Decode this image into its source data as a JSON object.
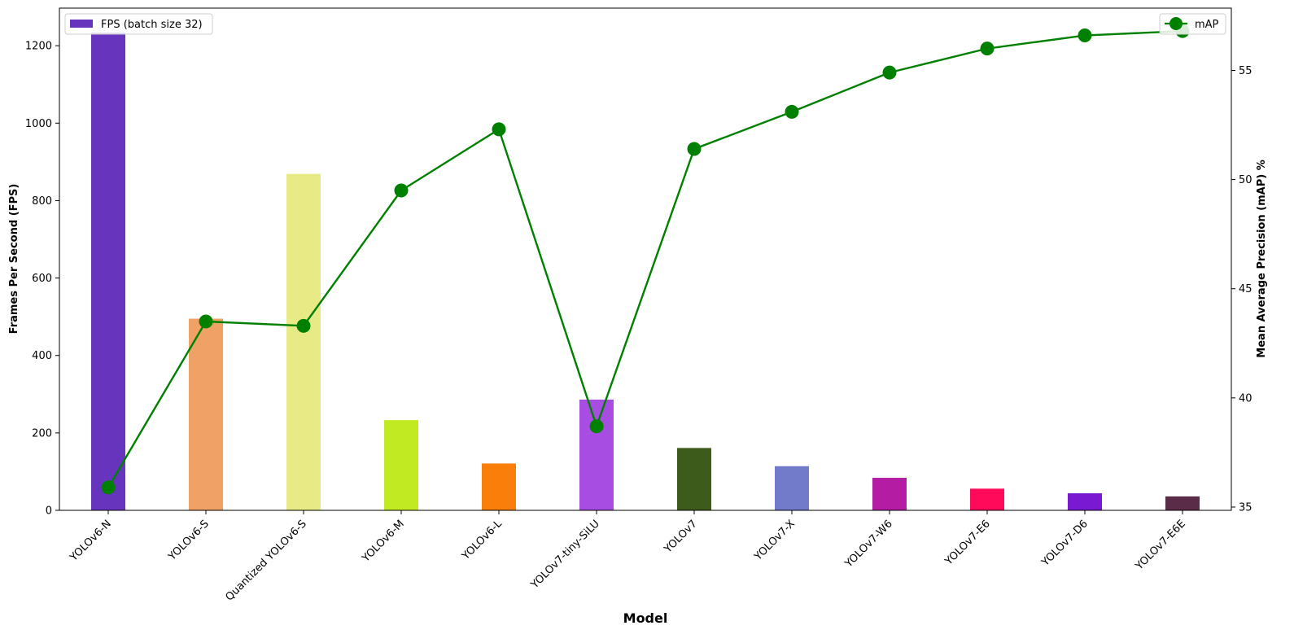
{
  "chart_data": {
    "type": "bar",
    "xlabel": "Model",
    "categories": [
      "YOLOv6-N",
      "YOLOv6-S",
      "Quantized YOLOv6-S",
      "YOLOv6-M",
      "YOLOv6-L",
      "YOLOv7-tiny-SiLU",
      "YOLOv7",
      "YOLOv7-X",
      "YOLOv7-W6",
      "YOLOv7-E6",
      "YOLOv7-D6",
      "YOLOv7-E6E"
    ],
    "series": [
      {
        "name": "FPS (batch size 32)",
        "type": "bar",
        "axis": "left",
        "values": [
          1234,
          495,
          869,
          233,
          121,
          286,
          161,
          114,
          84,
          56,
          44,
          36
        ],
        "colors": [
          "#6735bd",
          "#f0a166",
          "#e8ea86",
          "#c2ea22",
          "#f97f0a",
          "#a84de2",
          "#3d5b1b",
          "#717bca",
          "#b31ca3",
          "#ff0a5b",
          "#7a19d2",
          "#5a2c48"
        ]
      },
      {
        "name": "mAP",
        "type": "line",
        "axis": "right",
        "color": "#008000",
        "values": [
          35.9,
          43.5,
          43.3,
          49.5,
          52.3,
          38.7,
          51.4,
          53.1,
          54.9,
          56.0,
          56.6,
          56.8
        ]
      }
    ],
    "y_left": {
      "label": "Frames Per Second (FPS)",
      "ylim": [
        0,
        1297
      ],
      "ticks": [
        0,
        200,
        400,
        600,
        800,
        1000,
        1200
      ]
    },
    "y_right": {
      "label": "Mean Average Precision (mAP) %",
      "ylim": [
        34.85,
        57.85
      ],
      "ticks": [
        35,
        40,
        45,
        50,
        55
      ]
    },
    "grid": false,
    "legend_bar_position": "top-left",
    "legend_line_position": "top-right"
  }
}
